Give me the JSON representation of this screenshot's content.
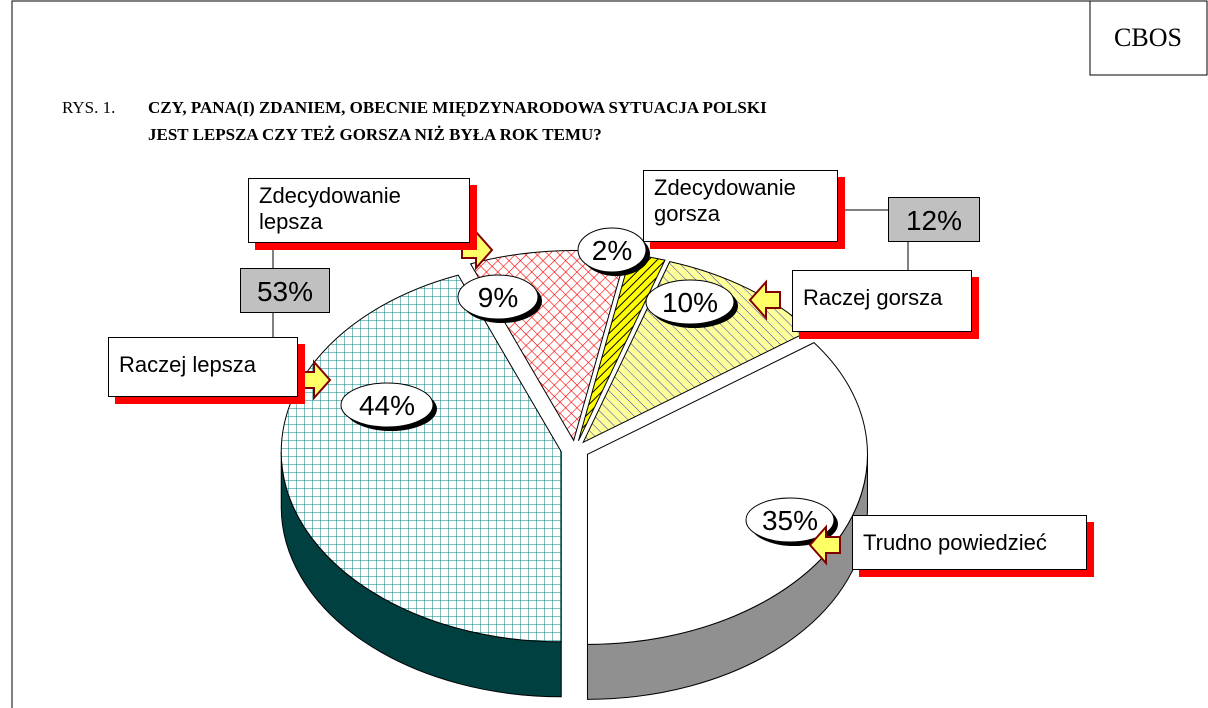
{
  "header": {
    "badge": "CBOS",
    "figure_label": "RYS. 1."
  },
  "chart_data": {
    "type": "pie",
    "title": [
      "CZY, PANA(I) ZDANIEM, OBECNIE MIĘDZYNARODOWA SYTUACJA POLSKI",
      "JEST LEPSZA CZY TEŻ GORSZA NIŻ BYŁA ROK TEMU?"
    ],
    "categories": [
      "Raczej lepsza",
      "Zdecydowanie lepsza",
      "Zdecydowanie gorsza",
      "Raczej gorsza",
      "Trudno powiedzieć"
    ],
    "values": [
      44,
      9,
      2,
      10,
      35
    ],
    "value_labels": [
      "44%",
      "9%",
      "2%",
      "10%",
      "35%"
    ],
    "colors": [
      "#008080",
      "#ff0000",
      "#000000",
      "#0000cc",
      "#ffffff"
    ],
    "group_totals": [
      {
        "value": 53,
        "label": "53%"
      },
      {
        "value": 12,
        "label": "12%"
      }
    ]
  }
}
